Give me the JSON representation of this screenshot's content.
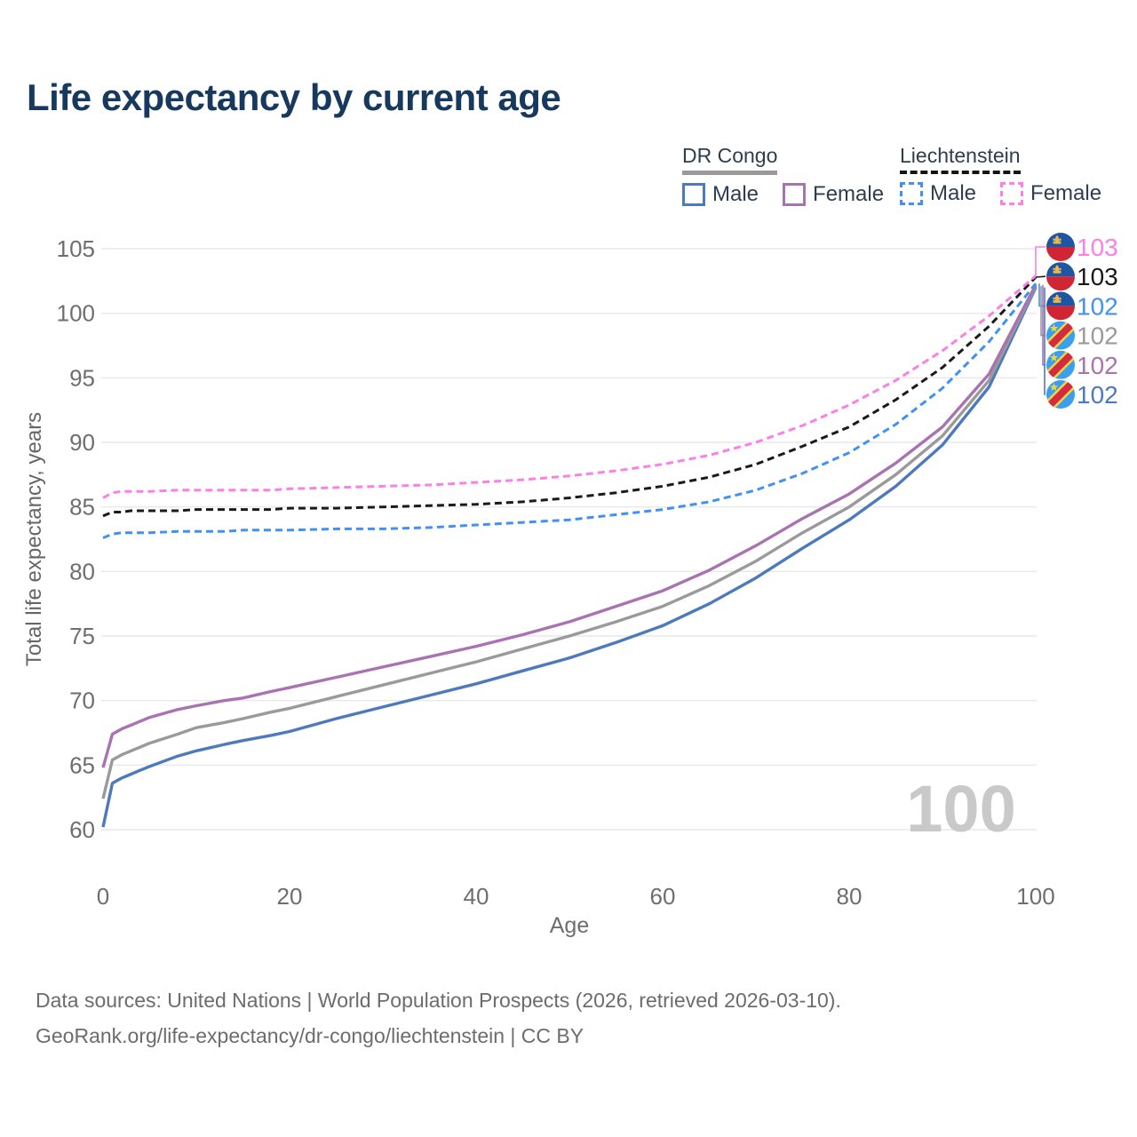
{
  "title": "Life expectancy by current age",
  "colors": {
    "title": "#17395e",
    "axis_text": "#6e6e6e",
    "grid": "#e9e9e9",
    "watermark": "#c9c9c9",
    "legend_text": "#2e3e4f"
  },
  "legend": {
    "groups": [
      {
        "name": "DR Congo",
        "style": "solid",
        "underline_color": "#9a9a9a",
        "items": [
          {
            "label": "Male",
            "color": "#4d79bd"
          },
          {
            "label": "Female",
            "color": "#a973b1"
          }
        ]
      },
      {
        "name": "Liechtenstein",
        "style": "dashed",
        "underline_color": "#141414",
        "items": [
          {
            "label": "Male",
            "color": "#4191f5"
          },
          {
            "label": "Female",
            "color": "#fb7fe5"
          }
        ]
      }
    ]
  },
  "chart_data": {
    "type": "line",
    "title": "Life expectancy by current age",
    "xlabel": "Age",
    "ylabel": "Total life expectancy, years",
    "xlim": [
      0,
      100
    ],
    "ylim": [
      60,
      105
    ],
    "xticks": [
      0,
      20,
      40,
      60,
      80,
      100
    ],
    "yticks": [
      60,
      65,
      70,
      75,
      80,
      85,
      90,
      95,
      100,
      105
    ],
    "grid": "horizontal",
    "legend_position": "top-right",
    "hover_value_label": "100",
    "x": [
      0,
      1,
      2,
      3,
      4,
      5,
      8,
      10,
      13,
      15,
      18,
      20,
      25,
      30,
      35,
      40,
      45,
      50,
      55,
      60,
      65,
      70,
      75,
      80,
      85,
      90,
      95,
      100
    ],
    "series": [
      {
        "id": "dr-congo-male",
        "name": "DR Congo Male",
        "color": "#4d79bd",
        "dash": "solid",
        "values": [
          60.2,
          63.6,
          64.0,
          64.3,
          64.6,
          64.9,
          65.7,
          66.1,
          66.6,
          66.9,
          67.3,
          67.6,
          68.6,
          69.5,
          70.4,
          71.3,
          72.3,
          73.3,
          74.5,
          75.8,
          77.5,
          79.5,
          81.8,
          84.0,
          86.6,
          89.8,
          94.3,
          102.0
        ]
      },
      {
        "id": "dr-congo-total",
        "name": "DR Congo",
        "color": "#9a9a9a",
        "dash": "solid",
        "values": [
          62.4,
          65.4,
          65.8,
          66.1,
          66.4,
          66.7,
          67.4,
          67.9,
          68.3,
          68.6,
          69.1,
          69.4,
          70.3,
          71.2,
          72.1,
          73.0,
          74.0,
          75.0,
          76.1,
          77.3,
          78.9,
          80.8,
          83.0,
          85.0,
          87.5,
          90.5,
          94.8,
          102.1
        ]
      },
      {
        "id": "dr-congo-female",
        "name": "DR Congo Female",
        "color": "#a973b1",
        "dash": "solid",
        "values": [
          64.8,
          67.4,
          67.8,
          68.1,
          68.4,
          68.7,
          69.3,
          69.6,
          70.0,
          70.2,
          70.7,
          71.0,
          71.8,
          72.6,
          73.4,
          74.2,
          75.1,
          76.1,
          77.3,
          78.5,
          80.1,
          82.0,
          84.1,
          86.0,
          88.4,
          91.2,
          95.3,
          102.2
        ]
      },
      {
        "id": "liechtenstein-male",
        "name": "Liechtenstein Male",
        "color": "#4191f5",
        "dash": "dashed",
        "values": [
          82.6,
          82.9,
          83.0,
          83.0,
          83.0,
          83.0,
          83.1,
          83.1,
          83.1,
          83.2,
          83.2,
          83.2,
          83.3,
          83.3,
          83.4,
          83.6,
          83.8,
          84.0,
          84.4,
          84.8,
          85.4,
          86.3,
          87.6,
          89.2,
          91.4,
          94.2,
          97.8,
          102.3
        ]
      },
      {
        "id": "liechtenstein-total",
        "name": "Liechtenstein",
        "color": "#1a1a1a",
        "dash": "dashed",
        "values": [
          84.3,
          84.6,
          84.6,
          84.7,
          84.7,
          84.7,
          84.7,
          84.8,
          84.8,
          84.8,
          84.8,
          84.9,
          84.9,
          85.0,
          85.1,
          85.2,
          85.4,
          85.7,
          86.1,
          86.6,
          87.3,
          88.3,
          89.7,
          91.2,
          93.3,
          95.8,
          99.0,
          102.8
        ]
      },
      {
        "id": "liechtenstein-female",
        "name": "Liechtenstein Female",
        "color": "#fb7fe5",
        "dash": "dashed",
        "values": [
          85.7,
          86.1,
          86.2,
          86.2,
          86.2,
          86.2,
          86.3,
          86.3,
          86.3,
          86.3,
          86.3,
          86.4,
          86.5,
          86.6,
          86.7,
          86.9,
          87.1,
          87.4,
          87.8,
          88.3,
          89.0,
          90.0,
          91.3,
          92.9,
          94.8,
          97.1,
          99.8,
          102.9
        ]
      }
    ],
    "annotations": [
      {
        "flag": "liechtenstein",
        "value": "103",
        "color": "#fb7fe5",
        "series_index": 5
      },
      {
        "flag": "liechtenstein",
        "value": "103",
        "color": "#1a1a1a",
        "series_index": 4
      },
      {
        "flag": "liechtenstein",
        "value": "102",
        "color": "#4191f5",
        "series_index": 3
      },
      {
        "flag": "dr-congo",
        "value": "102",
        "color": "#9a9a9a",
        "series_index": 1
      },
      {
        "flag": "dr-congo",
        "value": "102",
        "color": "#a973b1",
        "series_index": 2
      },
      {
        "flag": "dr-congo",
        "value": "102",
        "color": "#4d79bd",
        "series_index": 0
      }
    ]
  },
  "footer": {
    "line1": "Data sources: United Nations | World Population Prospects (2026, retrieved 2026-03-10).",
    "line2": "GeoRank.org/life-expectancy/dr-congo/liechtenstein | CC BY"
  }
}
